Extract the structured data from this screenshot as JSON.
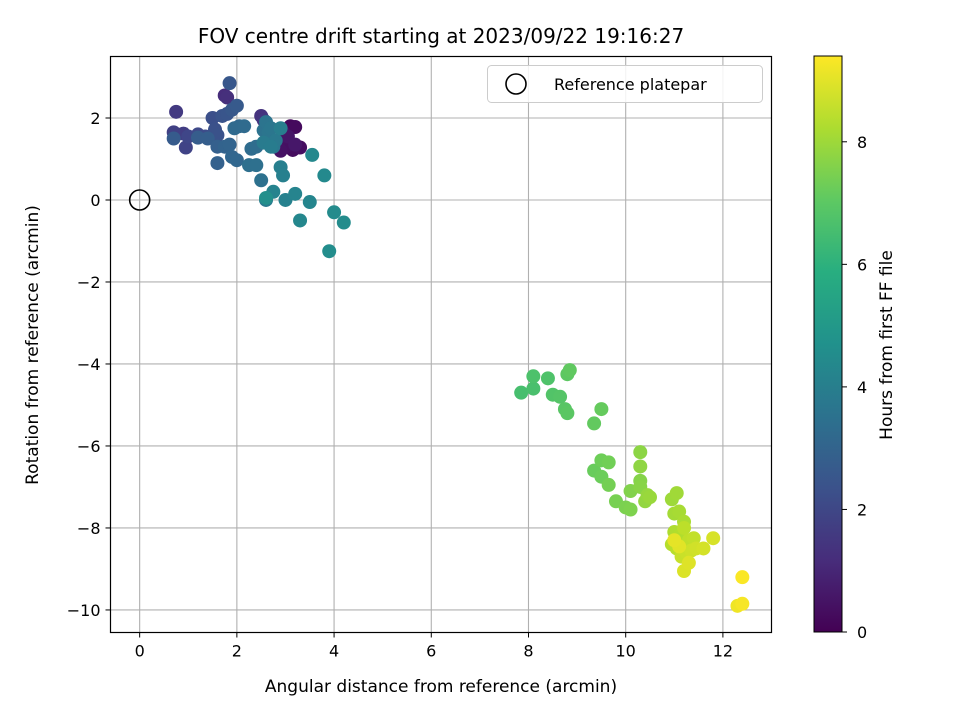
{
  "chart_data": {
    "type": "scatter",
    "title": "FOV centre drift starting at 2023/09/22 19:16:27",
    "xlabel": "Angular distance from reference (arcmin)",
    "ylabel": "Rotation from reference (arcmin)",
    "xlim": [
      -0.6,
      13.0
    ],
    "ylim": [
      -10.55,
      3.5
    ],
    "xticks": [
      0,
      2,
      4,
      6,
      8,
      10,
      12
    ],
    "xtick_labels": [
      "0",
      "2",
      "4",
      "6",
      "8",
      "10",
      "12"
    ],
    "yticks": [
      2,
      0,
      -2,
      -4,
      -6,
      -8,
      -10
    ],
    "ytick_labels": [
      "2",
      "0",
      "−2",
      "−4",
      "−6",
      "−8",
      "−10"
    ],
    "grid": true,
    "legend": {
      "placement": "top-right",
      "entries": [
        "Reference platepar"
      ]
    },
    "reference_point": {
      "name": "Reference platepar",
      "x": 0,
      "y": 0
    },
    "colorbar": {
      "label": "Hours from first FF file",
      "colormap": "viridis",
      "range": [
        0,
        9.4
      ],
      "ticks": [
        0,
        2,
        4,
        6,
        8
      ],
      "tick_labels": [
        "0",
        "2",
        "4",
        "6",
        "8"
      ]
    },
    "points": [
      [
        3.1,
        1.8,
        0.2
      ],
      [
        3.2,
        1.78,
        0.25
      ],
      [
        3.15,
        1.22,
        0.3
      ],
      [
        3.3,
        1.28,
        0.35
      ],
      [
        3.0,
        1.3,
        0.4
      ],
      [
        2.9,
        1.2,
        0.45
      ],
      [
        2.95,
        1.65,
        0.5
      ],
      [
        3.05,
        1.55,
        0.55
      ],
      [
        3.2,
        1.35,
        0.6
      ],
      [
        1.75,
        2.55,
        1.2
      ],
      [
        1.8,
        2.5,
        1.3
      ],
      [
        2.5,
        2.05,
        1.4
      ],
      [
        2.55,
        1.95,
        1.5
      ],
      [
        0.75,
        2.15,
        1.6
      ],
      [
        0.9,
        1.62,
        1.7
      ],
      [
        0.7,
        1.65,
        1.8
      ],
      [
        0.95,
        1.28,
        1.9
      ],
      [
        1.0,
        1.55,
        2.0
      ],
      [
        1.2,
        1.6,
        2.1
      ],
      [
        1.35,
        1.55,
        2.2
      ],
      [
        1.5,
        2.0,
        2.3
      ],
      [
        1.55,
        1.72,
        2.35
      ],
      [
        1.6,
        1.58,
        2.4
      ],
      [
        1.7,
        2.05,
        2.45
      ],
      [
        1.8,
        2.1,
        2.5
      ],
      [
        1.85,
        2.85,
        2.55
      ],
      [
        1.9,
        2.2,
        2.6
      ],
      [
        2.0,
        2.3,
        2.65
      ],
      [
        0.7,
        1.5,
        2.7
      ],
      [
        1.2,
        1.52,
        2.75
      ],
      [
        1.4,
        1.5,
        2.8
      ],
      [
        1.6,
        1.3,
        2.85
      ],
      [
        1.6,
        0.9,
        2.9
      ],
      [
        1.75,
        1.3,
        2.95
      ],
      [
        1.85,
        1.35,
        3.0
      ],
      [
        1.9,
        1.05,
        3.05
      ],
      [
        2.0,
        0.97,
        3.1
      ],
      [
        2.05,
        1.8,
        3.15
      ],
      [
        1.95,
        1.75,
        3.2
      ],
      [
        2.15,
        1.8,
        3.25
      ],
      [
        2.3,
        1.25,
        3.3
      ],
      [
        2.4,
        1.3,
        3.35
      ],
      [
        2.25,
        0.85,
        3.4
      ],
      [
        2.4,
        0.85,
        3.45
      ],
      [
        2.5,
        0.48,
        3.5
      ],
      [
        2.55,
        1.7,
        3.55
      ],
      [
        2.6,
        1.9,
        3.6
      ],
      [
        2.65,
        1.65,
        3.65
      ],
      [
        2.7,
        1.75,
        3.7
      ],
      [
        2.75,
        1.3,
        3.75
      ],
      [
        2.8,
        1.45,
        3.8
      ],
      [
        2.6,
        0.0,
        3.85
      ],
      [
        2.55,
        1.4,
        3.9
      ],
      [
        2.7,
        1.3,
        3.95
      ],
      [
        2.9,
        1.75,
        4.0
      ],
      [
        2.9,
        0.8,
        4.05
      ],
      [
        2.95,
        0.6,
        4.1
      ],
      [
        3.0,
        0.0,
        4.15
      ],
      [
        2.75,
        0.2,
        4.2
      ],
      [
        3.2,
        0.15,
        4.25
      ],
      [
        3.5,
        -0.05,
        4.3
      ],
      [
        3.3,
        -0.5,
        4.35
      ],
      [
        3.55,
        1.1,
        4.4
      ],
      [
        3.8,
        0.6,
        4.45
      ],
      [
        4.0,
        -0.3,
        4.5
      ],
      [
        4.2,
        -0.55,
        4.55
      ],
      [
        3.9,
        -1.25,
        4.6
      ],
      [
        2.6,
        0.05,
        4.65
      ],
      [
        7.85,
        -4.7,
        6.6
      ],
      [
        8.1,
        -4.6,
        6.65
      ],
      [
        8.1,
        -4.3,
        6.7
      ],
      [
        8.4,
        -4.35,
        6.75
      ],
      [
        8.5,
        -4.75,
        6.8
      ],
      [
        8.65,
        -4.8,
        6.85
      ],
      [
        8.75,
        -5.1,
        6.9
      ],
      [
        8.8,
        -5.2,
        6.95
      ],
      [
        8.8,
        -4.25,
        7.0
      ],
      [
        8.85,
        -4.15,
        7.05
      ],
      [
        9.35,
        -5.45,
        7.1
      ],
      [
        9.5,
        -5.1,
        7.15
      ],
      [
        9.35,
        -6.6,
        7.2
      ],
      [
        9.5,
        -6.75,
        7.25
      ],
      [
        9.5,
        -6.35,
        7.3
      ],
      [
        9.65,
        -6.4,
        7.35
      ],
      [
        9.65,
        -6.95,
        7.4
      ],
      [
        9.8,
        -7.35,
        7.45
      ],
      [
        10.0,
        -7.5,
        7.5
      ],
      [
        10.1,
        -7.55,
        7.55
      ],
      [
        10.1,
        -7.1,
        7.6
      ],
      [
        10.3,
        -6.85,
        7.65
      ],
      [
        10.3,
        -7.0,
        7.7
      ],
      [
        10.3,
        -6.15,
        7.75
      ],
      [
        10.3,
        -6.5,
        7.8
      ],
      [
        10.4,
        -7.35,
        7.85
      ],
      [
        10.45,
        -7.2,
        7.9
      ],
      [
        10.5,
        -7.25,
        7.95
      ],
      [
        10.95,
        -7.3,
        8.0
      ],
      [
        11.05,
        -7.15,
        8.05
      ],
      [
        11.0,
        -7.65,
        8.1
      ],
      [
        11.1,
        -7.6,
        8.15
      ],
      [
        11.2,
        -7.85,
        8.2
      ],
      [
        11.0,
        -8.1,
        8.25
      ],
      [
        11.1,
        -8.2,
        8.3
      ],
      [
        10.95,
        -8.4,
        8.35
      ],
      [
        11.05,
        -8.5,
        8.4
      ],
      [
        11.2,
        -8.0,
        8.45
      ],
      [
        11.3,
        -8.3,
        8.5
      ],
      [
        11.4,
        -8.25,
        8.55
      ],
      [
        11.15,
        -8.7,
        8.6
      ],
      [
        11.25,
        -8.6,
        8.65
      ],
      [
        11.35,
        -8.55,
        8.7
      ],
      [
        11.45,
        -8.5,
        8.75
      ],
      [
        11.6,
        -8.5,
        8.8
      ],
      [
        11.8,
        -8.25,
        8.85
      ],
      [
        11.2,
        -9.05,
        8.9
      ],
      [
        11.3,
        -8.85,
        8.95
      ],
      [
        11.1,
        -8.45,
        9.0
      ],
      [
        11.0,
        -8.3,
        9.05
      ],
      [
        12.3,
        -9.9,
        9.2
      ],
      [
        12.4,
        -9.85,
        9.3
      ],
      [
        12.4,
        -9.2,
        9.35
      ]
    ]
  }
}
